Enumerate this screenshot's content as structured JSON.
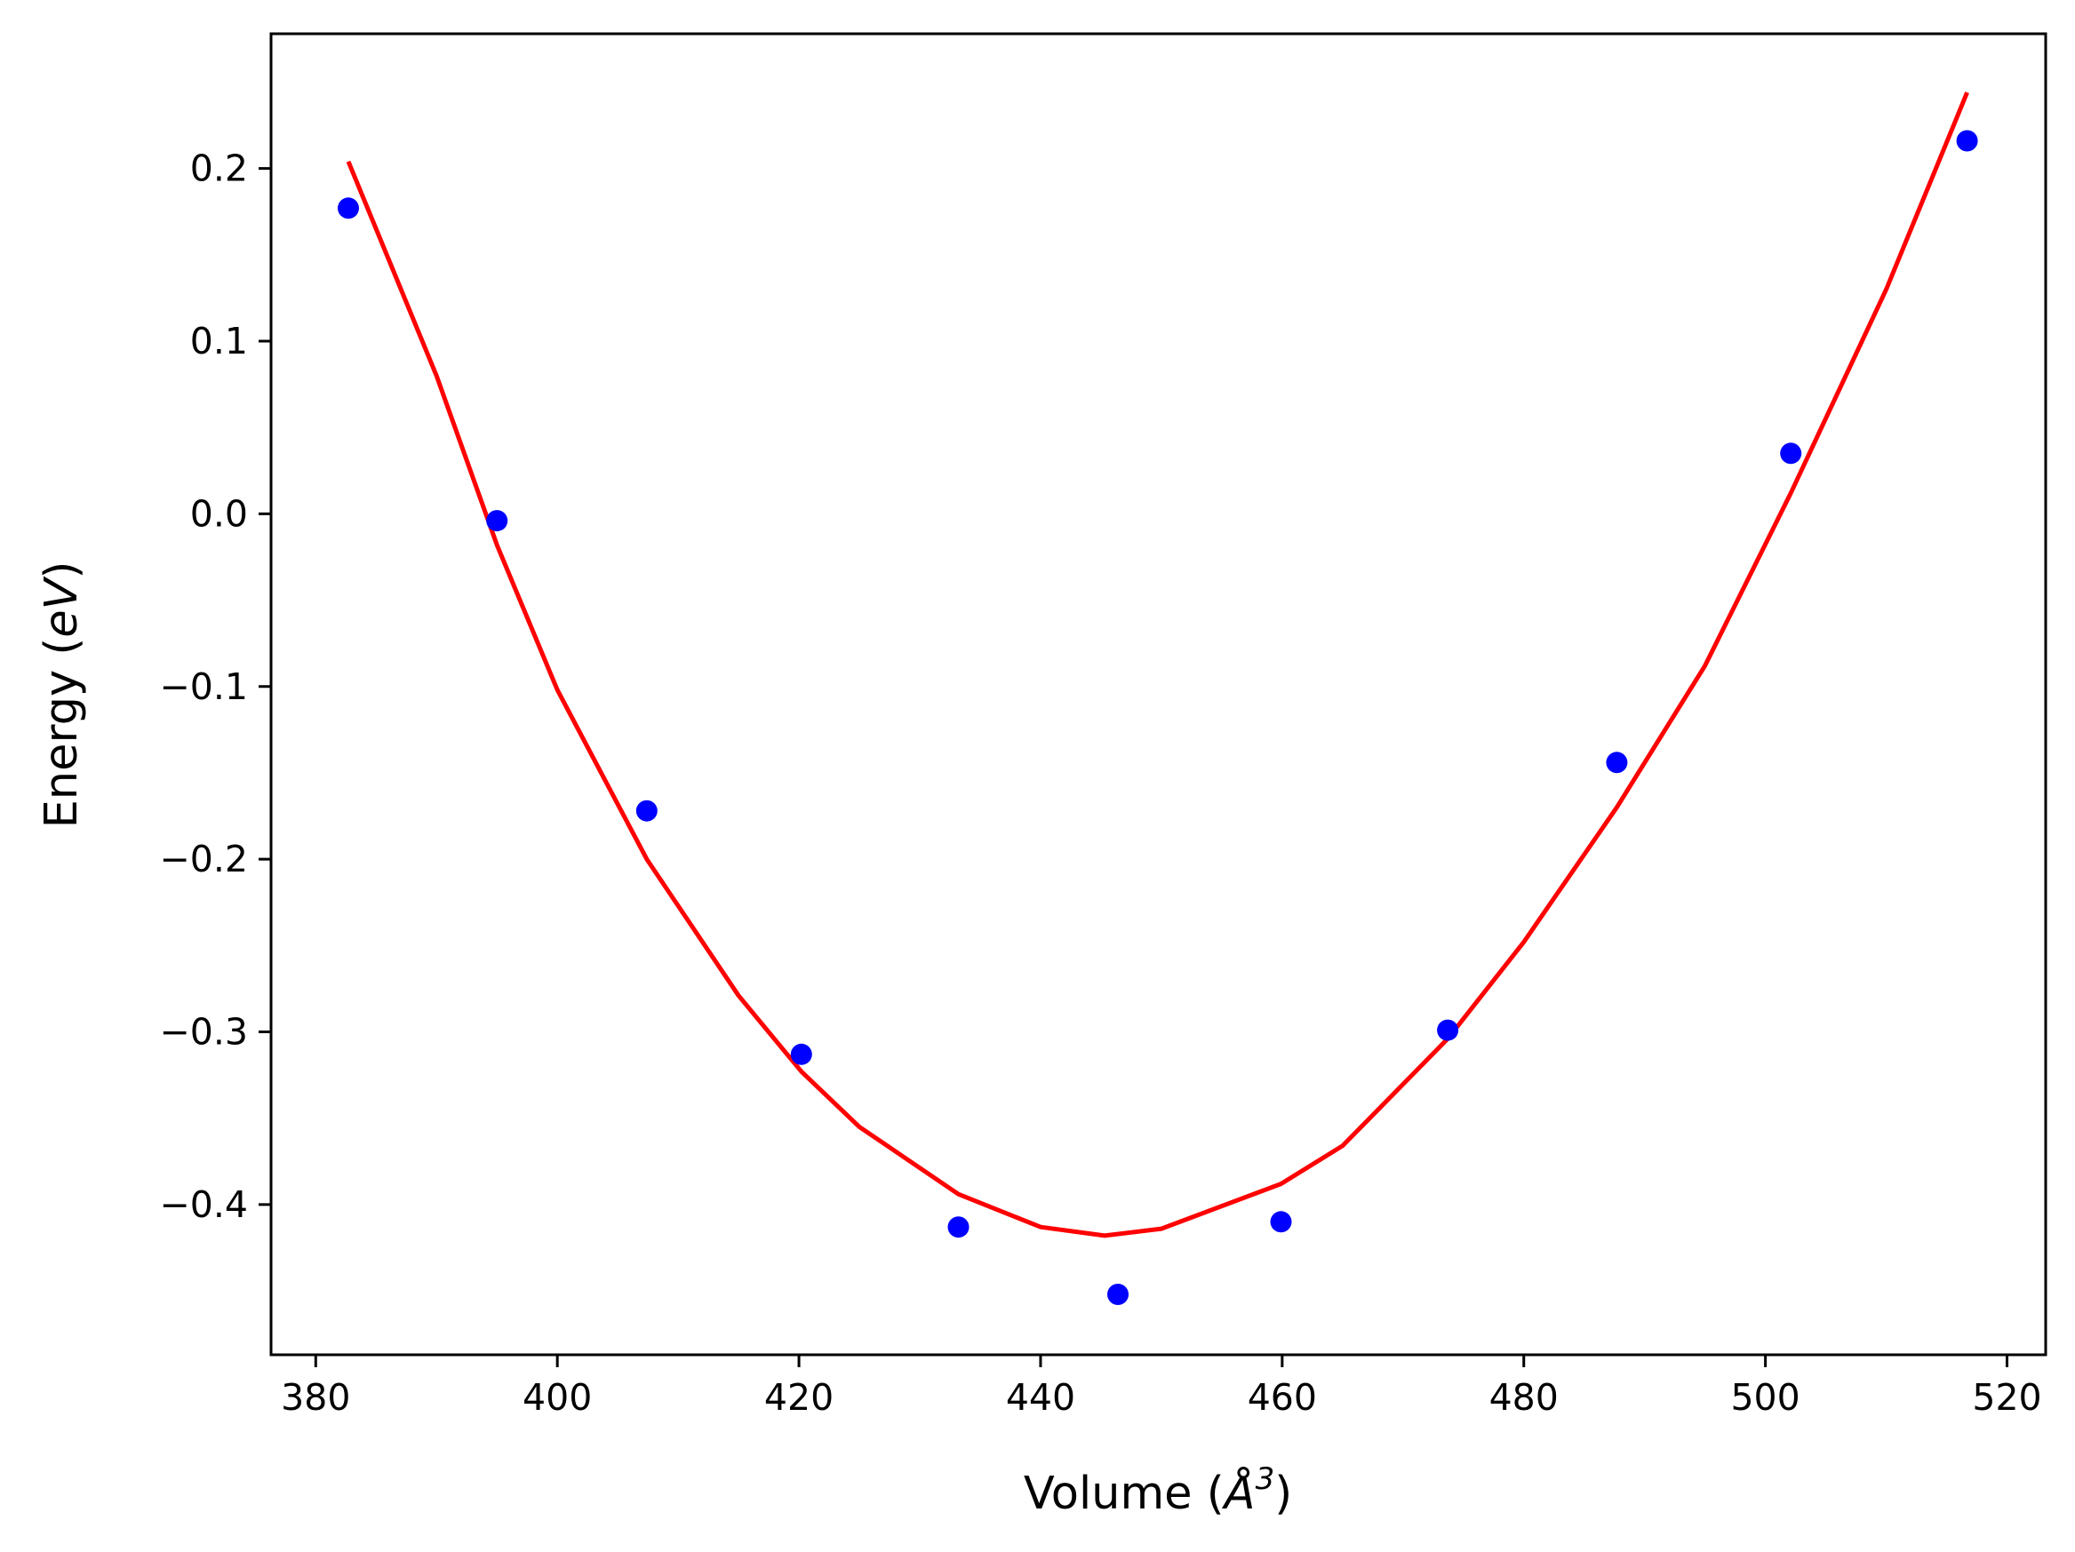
{
  "chart_data": {
    "type": "scatter",
    "xlabel": "Volume (",
    "xlabel_symbol": "Å",
    "xlabel_exponent": "3",
    "xlabel_close": ")",
    "ylabel": "Energy (",
    "ylabel_unit": "eV",
    "ylabel_close": ")",
    "xlim": [
      376.3,
      523.2
    ],
    "ylim": [
      -0.487,
      0.278
    ],
    "xticks": [
      380,
      400,
      420,
      440,
      460,
      480,
      500,
      520
    ],
    "xtick_labels": [
      "380",
      "400",
      "420",
      "440",
      "460",
      "480",
      "500",
      "520"
    ],
    "yticks": [
      0.2,
      0.1,
      0.0,
      -0.1,
      -0.2,
      -0.3,
      -0.4
    ],
    "ytick_labels": [
      "0.2",
      "0.1",
      "0.0",
      "−0.1",
      "−0.2",
      "−0.3",
      "−0.4"
    ],
    "grid": false,
    "series": [
      {
        "kind": "points",
        "color": "#0000ff",
        "x": [
          382.7,
          395.0,
          407.4,
          420.2,
          433.2,
          446.4,
          459.9,
          473.7,
          487.7,
          502.1,
          516.7
        ],
        "y": [
          0.177,
          -0.004,
          -0.172,
          -0.313,
          -0.413,
          -0.452,
          -0.41,
          -0.299,
          -0.144,
          0.035,
          0.216
        ]
      },
      {
        "kind": "fit-line",
        "color": "#ff0000",
        "x": [
          382.7,
          390.0,
          395.0,
          400.0,
          407.4,
          415.0,
          420.2,
          425.0,
          433.2,
          440.0,
          445.3,
          450.0,
          459.9,
          465.0,
          473.7,
          480.0,
          487.7,
          495.0,
          502.1,
          510.0,
          516.7
        ],
        "y": [
          0.204,
          0.08,
          -0.018,
          -0.102,
          -0.2,
          -0.279,
          -0.323,
          -0.355,
          -0.394,
          -0.413,
          -0.418,
          -0.414,
          -0.388,
          -0.366,
          -0.304,
          -0.248,
          -0.17,
          -0.088,
          0.012,
          0.13,
          0.244
        ]
      }
    ]
  }
}
